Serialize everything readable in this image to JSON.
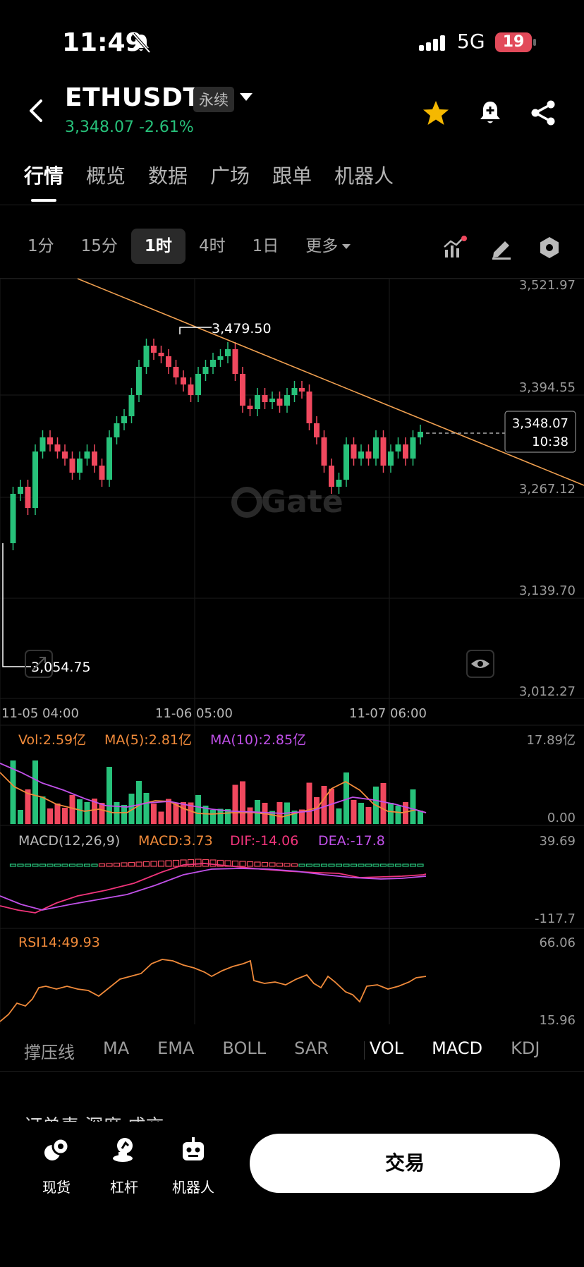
{
  "status_bar": {
    "time": "11:49",
    "network": "5G",
    "battery": "19"
  },
  "header": {
    "pair": "ETHUSDT",
    "contract_type": "永续",
    "price": "3,348.07",
    "change": "-2.61%",
    "icons": [
      "back-icon",
      "star-icon",
      "bell-plus-icon",
      "share-icon"
    ],
    "colors": {
      "up": "#27c17a",
      "down": "#f0485e",
      "star": "#f5b800"
    }
  },
  "tabs": [
    "行情",
    "概览",
    "数据",
    "广场",
    "跟单",
    "机器人"
  ],
  "timeframes": {
    "items": [
      "1分",
      "15分",
      "1时",
      "4时",
      "1日"
    ],
    "active": "1时",
    "more": "更多"
  },
  "chart": {
    "y_labels": [
      "3,521.97",
      "3,394.55",
      "3,267.12",
      "3,139.70",
      "3,012.27"
    ],
    "x_labels": [
      "11-05 04:00",
      "11-06 05:00",
      "11-07 06:00"
    ],
    "high_marker": "3,479.50",
    "low_marker": "3,054.75",
    "current_price": "3,348.07",
    "countdown": "10:38",
    "watermark": "Gate",
    "volume": {
      "vol": "Vol:2.59亿",
      "ma5": "MA(5):2.81亿",
      "ma10": "MA(10):2.85亿",
      "max": "17.89亿",
      "min": "0.00"
    },
    "macd": {
      "label": "MACD(12,26,9)",
      "macd": "MACD:3.73",
      "dif": "DIF:-14.06",
      "dea": "DEA:-17.8",
      "max": "39.69",
      "min": "-117.7"
    },
    "rsi": {
      "label": "RSI14:49.93",
      "max": "66.06",
      "min": "15.96"
    }
  },
  "indicator_tabs": [
    "撑压线",
    "MA",
    "EMA",
    "BOLL",
    "SAR",
    "VOL",
    "MACD",
    "KDJ"
  ],
  "partial_text": "订单表 深度 成交",
  "bottom_nav": {
    "items": [
      {
        "label": "现货",
        "icon": "spot-icon"
      },
      {
        "label": "杠杆",
        "icon": "margin-icon"
      },
      {
        "label": "机器人",
        "icon": "robot-icon"
      }
    ],
    "trade": "交易"
  }
}
